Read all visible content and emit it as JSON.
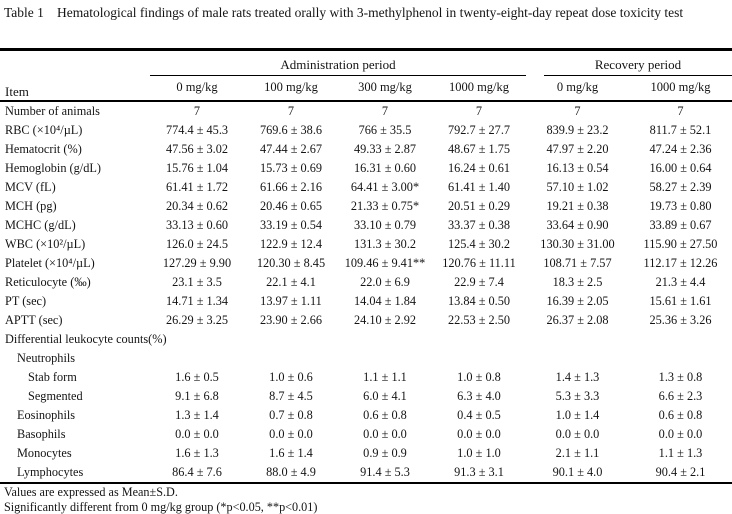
{
  "title": {
    "number": "Table 1",
    "caption": "Hematological findings of male rats treated orally with 3-methylphenol in twenty-eight-day repeat dose toxicity test"
  },
  "table": {
    "item_header": "Item",
    "groups": [
      {
        "label": "Administration period"
      },
      {
        "label": "Recovery period"
      }
    ],
    "dose_headers": [
      "0 mg/kg",
      "100 mg/kg",
      "300 mg/kg",
      "1000 mg/kg",
      "0 mg/kg",
      "1000 mg/kg"
    ],
    "rows": [
      {
        "label": "Number of animals",
        "indent": 0,
        "values": [
          "7",
          "7",
          "7",
          "7",
          "7",
          "7"
        ]
      },
      {
        "label": "RBC (×10⁴/µL)",
        "indent": 0,
        "values": [
          "774.4 ± 45.3",
          "769.6 ± 38.6",
          "766 ± 35.5",
          "792.7 ± 27.7",
          "839.9 ± 23.2",
          "811.7 ± 52.1"
        ]
      },
      {
        "label": "Hematocrit (%)",
        "indent": 0,
        "values": [
          "47.56 ± 3.02",
          "47.44 ± 2.67",
          "49.33 ± 2.87",
          "48.67 ± 1.75",
          "47.97 ± 2.20",
          "47.24 ± 2.36"
        ]
      },
      {
        "label": "Hemoglobin (g/dL)",
        "indent": 0,
        "values": [
          "15.76 ± 1.04",
          "15.73 ± 0.69",
          "16.31 ± 0.60",
          "16.24 ± 0.61",
          "16.13 ± 0.54",
          "16.00 ± 0.64"
        ]
      },
      {
        "label": "MCV (fL)",
        "indent": 0,
        "values": [
          "61.41 ± 1.72",
          "61.66 ± 2.16",
          "64.41 ± 3.00*",
          "61.41 ± 1.40",
          "57.10 ± 1.02",
          "58.27 ± 2.39"
        ]
      },
      {
        "label": "MCH (pg)",
        "indent": 0,
        "values": [
          "20.34 ± 0.62",
          "20.46 ± 0.65",
          "21.33 ± 0.75*",
          "20.51 ± 0.29",
          "19.21 ± 0.38",
          "19.73 ± 0.80"
        ]
      },
      {
        "label": "MCHC (g/dL)",
        "indent": 0,
        "values": [
          "33.13 ± 0.60",
          "33.19 ± 0.54",
          "33.10 ± 0.79",
          "33.37 ± 0.38",
          "33.64 ± 0.90",
          "33.89 ± 0.67"
        ]
      },
      {
        "label": "WBC (×10²/µL)",
        "indent": 0,
        "values": [
          "126.0 ± 24.5",
          "122.9 ± 12.4",
          "131.3 ± 30.2",
          "125.4 ± 30.2",
          "130.30 ± 31.00",
          "115.90 ± 27.50"
        ]
      },
      {
        "label": "Platelet (×10⁴/µL)",
        "indent": 0,
        "values": [
          "127.29 ± 9.90",
          "120.30 ± 8.45",
          "109.46 ± 9.41**",
          "120.76 ± 11.11",
          "108.71 ± 7.57",
          "112.17 ± 12.26"
        ]
      },
      {
        "label": "Reticulocyte (‰)",
        "indent": 0,
        "values": [
          "23.1 ± 3.5",
          "22.1 ± 4.1",
          "22.0 ± 6.9",
          "22.9 ± 7.4",
          "18.3 ± 2.5",
          "21.3 ± 4.4"
        ]
      },
      {
        "label": "PT (sec)",
        "indent": 0,
        "values": [
          "14.71 ± 1.34",
          "13.97 ± 1.11",
          "14.04 ± 1.84",
          "13.84 ± 0.50",
          "16.39 ± 2.05",
          "15.61 ± 1.61"
        ]
      },
      {
        "label": "APTT (sec)",
        "indent": 0,
        "values": [
          "26.29 ± 3.25",
          "23.90 ± 2.66",
          "24.10 ± 2.92",
          "22.53 ± 2.50",
          "26.37 ± 2.08",
          "25.36 ± 3.26"
        ]
      },
      {
        "label": "Differential leukocyte counts(%)",
        "indent": 0,
        "values": [
          "",
          "",
          "",
          "",
          "",
          ""
        ]
      },
      {
        "label": "Neutrophils",
        "indent": 1,
        "values": [
          "",
          "",
          "",
          "",
          "",
          ""
        ]
      },
      {
        "label": "Stab form",
        "indent": 2,
        "values": [
          "1.6 ± 0.5",
          "1.0 ± 0.6",
          "1.1 ± 1.1",
          "1.0 ± 0.8",
          "1.4 ± 1.3",
          "1.3 ± 0.8"
        ]
      },
      {
        "label": "Segmented",
        "indent": 2,
        "values": [
          "9.1 ± 6.8",
          "8.7 ± 4.5",
          "6.0 ± 4.1",
          "6.3 ± 4.0",
          "5.3 ± 3.3",
          "6.6 ± 2.3"
        ]
      },
      {
        "label": "Eosinophils",
        "indent": 1,
        "values": [
          "1.3 ± 1.4",
          "0.7 ± 0.8",
          "0.6 ± 0.8",
          "0.4 ± 0.5",
          "1.0 ± 1.4",
          "0.6 ± 0.8"
        ]
      },
      {
        "label": "Basophils",
        "indent": 1,
        "values": [
          "0.0 ± 0.0",
          "0.0 ± 0.0",
          "0.0 ± 0.0",
          "0.0 ± 0.0",
          "0.0 ± 0.0",
          "0.0 ± 0.0"
        ]
      },
      {
        "label": "Monocytes",
        "indent": 1,
        "values": [
          "1.6 ± 1.3",
          "1.6 ± 1.4",
          "0.9 ± 0.9",
          "1.0 ± 1.0",
          "2.1 ± 1.1",
          "1.1 ± 1.3"
        ]
      },
      {
        "label": "Lymphocytes",
        "indent": 1,
        "values": [
          "86.4 ± 7.6",
          "88.0 ± 4.9",
          "91.4 ± 5.3",
          "91.3 ± 3.1",
          "90.1 ± 4.0",
          "90.4 ± 2.1"
        ]
      }
    ]
  },
  "footnotes": [
    "Values are expressed as Mean±S.D.",
    "Significantly different from 0 mg/kg group (*p<0.05, **p<0.01)"
  ]
}
